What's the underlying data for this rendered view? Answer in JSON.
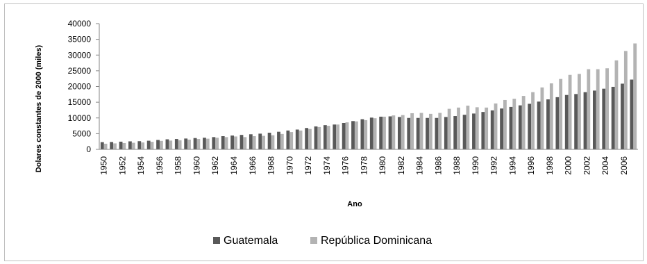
{
  "chart_data": {
    "type": "bar",
    "xlabel": "Ano",
    "ylabel": "Dolares constantes de 2000 (miles)",
    "ylim": [
      0,
      40000
    ],
    "yticks": [
      0,
      5000,
      10000,
      15000,
      20000,
      25000,
      30000,
      35000,
      40000
    ],
    "grid": false,
    "legend_position": "bottom",
    "categories": [
      "1950",
      "1951",
      "1952",
      "1953",
      "1954",
      "1955",
      "1956",
      "1957",
      "1958",
      "1959",
      "1960",
      "1961",
      "1962",
      "1963",
      "1964",
      "1965",
      "1966",
      "1967",
      "1968",
      "1969",
      "1970",
      "1971",
      "1972",
      "1973",
      "1974",
      "1975",
      "1976",
      "1977",
      "1978",
      "1979",
      "1980",
      "1981",
      "1982",
      "1983",
      "1984",
      "1985",
      "1986",
      "1987",
      "1988",
      "1989",
      "1990",
      "1991",
      "1992",
      "1993",
      "1994",
      "1995",
      "1996",
      "1997",
      "1998",
      "1999",
      "2000",
      "2001",
      "2002",
      "2003",
      "2004",
      "2005",
      "2006",
      "2007"
    ],
    "tick_labels": [
      "1950",
      "",
      "1952",
      "",
      "1954",
      "",
      "1956",
      "",
      "1958",
      "",
      "1960",
      "",
      "1962",
      "",
      "1964",
      "",
      "1966",
      "",
      "1968",
      "",
      "1970",
      "",
      "1972",
      "",
      "1974",
      "",
      "1976",
      "",
      "1978",
      "",
      "1980",
      "",
      "1982",
      "",
      "1984",
      "",
      "1986",
      "",
      "1988",
      "",
      "1990",
      "",
      "1992",
      "",
      "1994",
      "",
      "1996",
      "",
      "1998",
      "",
      "2000",
      "",
      "2002",
      "",
      "2004",
      "",
      "2006",
      ""
    ],
    "series": [
      {
        "name": "Guatemala",
        "color": "#595959",
        "values": [
          2300,
          2350,
          2450,
          2550,
          2600,
          2750,
          3000,
          3200,
          3300,
          3450,
          3600,
          3700,
          3900,
          4200,
          4400,
          4600,
          4800,
          5000,
          5300,
          5600,
          6000,
          6300,
          6800,
          7300,
          7700,
          7900,
          8400,
          9000,
          9600,
          10100,
          10400,
          10500,
          10300,
          10000,
          10000,
          10000,
          10000,
          10300,
          10600,
          11000,
          11400,
          11900,
          12400,
          13000,
          13500,
          14000,
          14500,
          15200,
          15900,
          16600,
          17300,
          17600,
          18200,
          18700,
          19300,
          19900,
          20900,
          22200
        ]
      },
      {
        "name": "República Dominicana",
        "color": "#b3b3b3",
        "values": [
          1800,
          1900,
          2000,
          2100,
          2200,
          2400,
          2700,
          2800,
          2900,
          3100,
          3300,
          3400,
          3700,
          3900,
          4100,
          3900,
          4200,
          4300,
          4500,
          4900,
          5500,
          6000,
          6500,
          7100,
          7500,
          7900,
          8600,
          8900,
          9300,
          9900,
          10400,
          10800,
          10900,
          11500,
          11600,
          11300,
          11600,
          12900,
          13300,
          13900,
          13400,
          13300,
          14600,
          15700,
          16100,
          17000,
          18200,
          19700,
          21000,
          22400,
          23700,
          24000,
          25500,
          25500,
          25800,
          28300,
          31300,
          33700
        ]
      }
    ]
  }
}
